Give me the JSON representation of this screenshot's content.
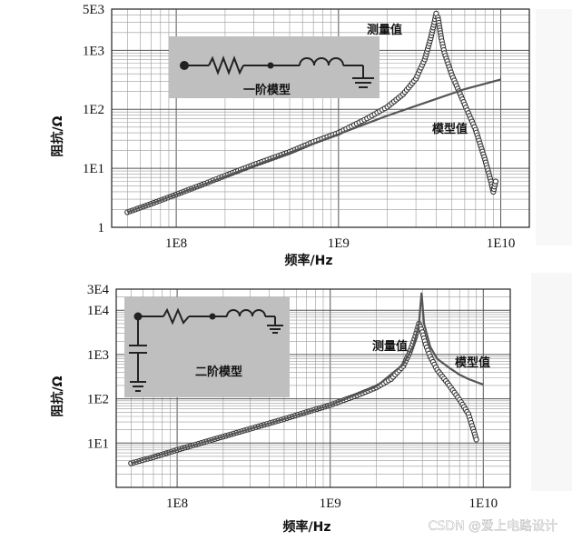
{
  "chart_data": [
    {
      "type": "line",
      "xscale": "log",
      "yscale": "log",
      "xlim": [
        40000000,
        15000000000
      ],
      "ylim": [
        1,
        5000
      ],
      "xticks": [
        "1E8",
        "1E9",
        "1E10"
      ],
      "yticks": [
        "1",
        "1E1",
        "1E2",
        "1E3",
        "5E3"
      ],
      "xlabel": "频率/Hz",
      "ylabel": "阻抗/Ω",
      "inset_label": "一阶模型",
      "series": [
        {
          "name": "测量值",
          "style": "markers",
          "color": "#333333",
          "x": [
            50000000,
            70000000,
            100000000,
            150000000,
            200000000,
            300000000,
            500000000,
            700000000,
            1000000000,
            1500000000,
            2000000000,
            2500000000,
            3000000000,
            3400000000,
            3700000000,
            3900000000,
            4000000000,
            4100000000,
            4200000000,
            4300000000,
            4500000000,
            5000000000,
            6000000000,
            7000000000,
            8000000000,
            8700000000,
            9000000000,
            9300000000
          ],
          "y": [
            1.8,
            2.5,
            3.6,
            5.5,
            7.5,
            11.5,
            19,
            28,
            40,
            70,
            110,
            180,
            330,
            700,
            1600,
            3000,
            4200,
            3600,
            2400,
            1600,
            900,
            380,
            120,
            45,
            14,
            6,
            4,
            6
          ]
        },
        {
          "name": "模型值",
          "style": "line",
          "color": "#555555",
          "x": [
            50000000,
            100000000,
            200000000,
            500000000,
            1000000000,
            2000000000,
            4000000000,
            6000000000,
            10000000000
          ],
          "y": [
            1.8,
            3.6,
            7.3,
            18.5,
            38,
            78,
            150,
            220,
            320
          ]
        }
      ],
      "annotations": [
        {
          "text": "测量值",
          "x": 2800000000,
          "y": 3500
        },
        {
          "text": "模型值",
          "x": 5000000000,
          "y": 100
        }
      ]
    },
    {
      "type": "line",
      "xscale": "log",
      "yscale": "log",
      "xlim": [
        40000000,
        15000000000
      ],
      "ylim": [
        1,
        30000
      ],
      "xticks": [
        "1E8",
        "1E9",
        "1E10"
      ],
      "yticks": [
        "1E1",
        "1E2",
        "1E3",
        "1E4",
        "3E4"
      ],
      "xlabel": "频率/Hz",
      "ylabel": "阻抗/Ω",
      "inset_label": "二阶模型",
      "series": [
        {
          "name": "测量值",
          "style": "markers",
          "color": "#333333",
          "x": [
            50000000,
            70000000,
            100000000,
            150000000,
            200000000,
            300000000,
            500000000,
            700000000,
            1000000000,
            1500000000,
            2000000000,
            2500000000,
            3000000000,
            3300000000,
            3600000000,
            3800000000,
            4000000000,
            4200000000,
            4500000000,
            5000000000,
            6000000000,
            7000000000,
            8000000000,
            8700000000,
            9000000000
          ],
          "y": [
            3.5,
            4.8,
            7,
            10.5,
            14,
            21,
            35,
            50,
            72,
            120,
            180,
            280,
            550,
            1100,
            2600,
            5000,
            3200,
            1700,
            900,
            450,
            200,
            95,
            45,
            18,
            12
          ]
        },
        {
          "name": "模型值",
          "style": "line",
          "color": "#555555",
          "x": [
            50000000,
            100000000,
            200000000,
            500000000,
            1000000000,
            2000000000,
            3000000000,
            3500000000,
            3800000000,
            3950000000,
            4100000000,
            4500000000,
            5000000000,
            6000000000,
            7000000000,
            8000000000,
            9000000000,
            10000000000
          ],
          "y": [
            3.5,
            7,
            14,
            35,
            72,
            190,
            600,
            1600,
            5000,
            25000,
            5000,
            1500,
            800,
            500,
            350,
            280,
            240,
            210
          ]
        }
      ],
      "annotations": [
        {
          "text": "测量值",
          "x": 2300000000,
          "y": 1500
        },
        {
          "text": "模型值",
          "x": 4800000000,
          "y": 900
        }
      ]
    }
  ],
  "watermark": "CSDN @爱上电路设计"
}
